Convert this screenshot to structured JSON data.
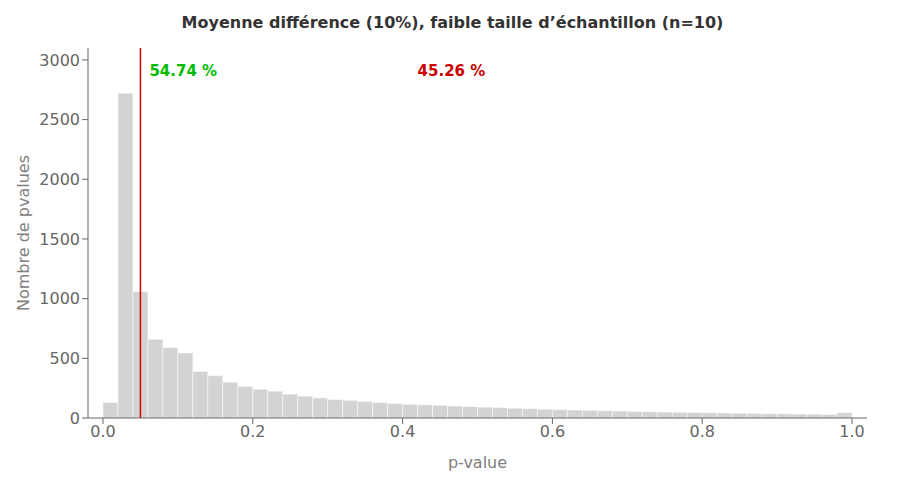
{
  "chart_data": {
    "type": "histogram",
    "title": "Moyenne différence (10%), faible taille d’échantillon (n=10)",
    "x_label": "p-value",
    "y_label": "Nombre de pvalues",
    "bins": [
      0,
      0.02,
      0.04,
      0.06,
      0.08,
      0.1,
      0.12,
      0.14,
      0.16,
      0.18,
      0.2,
      0.22,
      0.24,
      0.26,
      0.28,
      0.3,
      0.32,
      0.34,
      0.36,
      0.38,
      0.4,
      0.42,
      0.44,
      0.46,
      0.48,
      0.5,
      0.52,
      0.54,
      0.56,
      0.58,
      0.6,
      0.62,
      0.64,
      0.66,
      0.68,
      0.7,
      0.72,
      0.74,
      0.76,
      0.78,
      0.8,
      0.82,
      0.84,
      0.86,
      0.88,
      0.9,
      0.92,
      0.94,
      0.96,
      0.98,
      1
    ],
    "values": [
      130,
      2720,
      1060,
      660,
      590,
      545,
      390,
      355,
      300,
      265,
      240,
      225,
      200,
      183,
      168,
      155,
      148,
      138,
      130,
      122,
      115,
      110,
      105,
      100,
      96,
      91,
      87,
      82,
      78,
      74,
      70,
      67,
      64,
      61,
      58,
      55,
      53,
      50,
      48,
      46,
      44,
      42,
      40,
      38,
      36,
      35,
      33,
      32,
      30,
      45
    ],
    "color": "#D3D3D3",
    "xlim": [
      -0.02,
      1.02
    ],
    "xticks": [
      {
        "value": 0,
        "label": "0.0"
      },
      0.2,
      0.4,
      0.6,
      0.8,
      {
        "value": 1,
        "label": "1.0"
      }
    ],
    "ylim": [
      0,
      3100
    ],
    "yticks": [
      0,
      500,
      1000,
      1500,
      2000,
      2500,
      3000
    ],
    "grid": false,
    "vline": {
      "x": 0.05,
      "color": "#CC0000"
    },
    "annotations": [
      {
        "text": "54.74 %",
        "x": 0.062,
        "y": 2980,
        "color": "#00BB00"
      },
      {
        "text": "45.26 %",
        "x": 0.42,
        "y": 2980,
        "color": "#CC0000"
      }
    ]
  }
}
